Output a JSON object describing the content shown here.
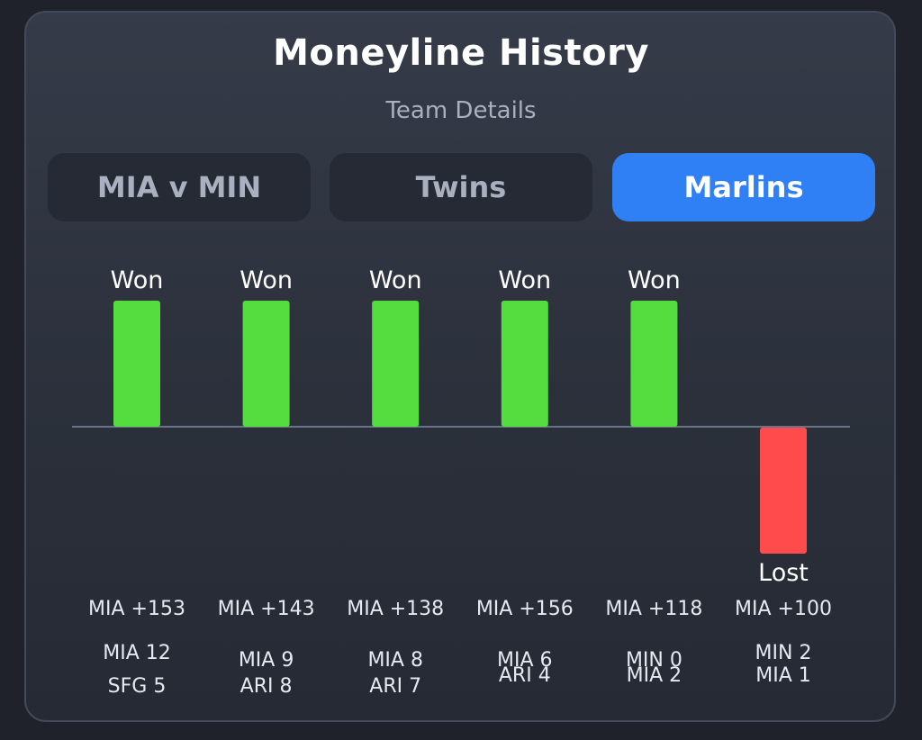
{
  "header": {
    "title": "Moneyline History",
    "subtitle": "Team Details"
  },
  "tabs": [
    {
      "label": "MIA v MIN",
      "active": false
    },
    {
      "label": "Twins",
      "active": false
    },
    {
      "label": "Marlins",
      "active": true
    }
  ],
  "colors": {
    "won": "#55dc3f",
    "lost": "#ff4b4b",
    "accent": "#2f80f5",
    "baseline": "#6a7287"
  },
  "chart_data": {
    "type": "bar",
    "title": "",
    "categories": [
      "MIA +153",
      "MIA +143",
      "MIA +138",
      "MIA +156",
      "MIA +118",
      "MIA +100"
    ],
    "values": [
      1,
      1,
      1,
      1,
      1,
      -1
    ],
    "result_labels": [
      "Won",
      "Won",
      "Won",
      "Won",
      "Won",
      "Lost"
    ],
    "scores": [
      [
        "MIA 12",
        "SFG 5"
      ],
      [
        "MIA 9",
        "ARI 8"
      ],
      [
        "MIA 8",
        "ARI 7"
      ],
      [
        "MIA 6",
        "ARI 4"
      ],
      [
        "MIN 0",
        "MIA 2"
      ],
      [
        "MIN 2",
        "MIA 1"
      ]
    ],
    "ylim": [
      -1,
      1
    ]
  }
}
